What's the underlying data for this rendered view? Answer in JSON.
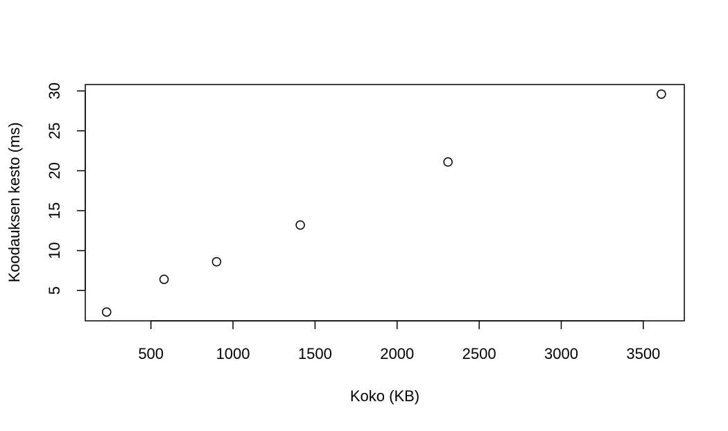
{
  "chart_data": {
    "type": "scatter",
    "title": "",
    "xlabel": "Koko (KB)",
    "ylabel": "Koodauksen kesto (ms)",
    "xlim": [
      100,
      3750
    ],
    "ylim": [
      1.2,
      30.8
    ],
    "xticks": [
      500,
      1000,
      1500,
      2000,
      2500,
      3000,
      3500
    ],
    "yticks": [
      5,
      10,
      15,
      20,
      25,
      30
    ],
    "grid": false,
    "marker": "open-circle",
    "series": [
      {
        "points": [
          {
            "x": 230,
            "y": 2.3
          },
          {
            "x": 580,
            "y": 6.4
          },
          {
            "x": 900,
            "y": 8.6
          },
          {
            "x": 1410,
            "y": 13.2
          },
          {
            "x": 2310,
            "y": 21.1
          },
          {
            "x": 3610,
            "y": 29.6
          }
        ]
      }
    ]
  },
  "colors": {
    "background": "#ffffff",
    "axis": "#000000",
    "marker_stroke": "#000000"
  }
}
